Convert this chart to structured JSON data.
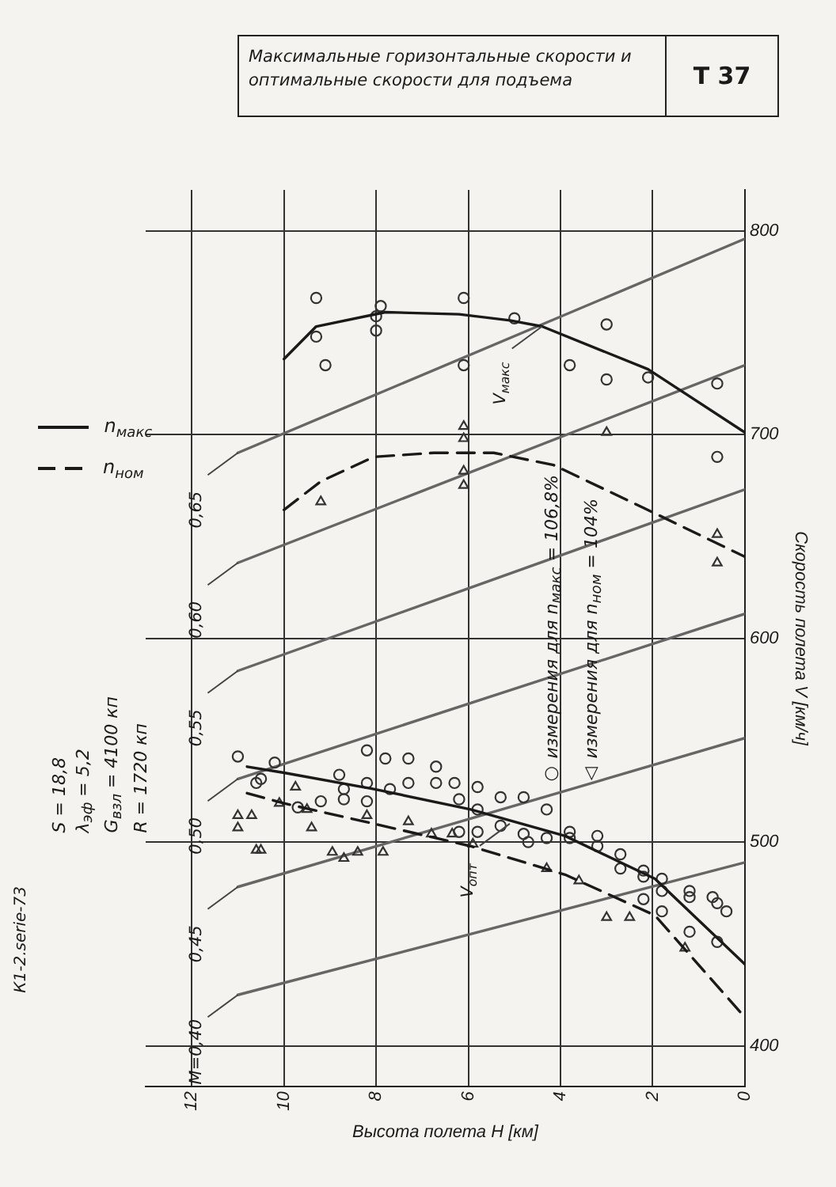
{
  "chart_data": {
    "type": "line",
    "title": "Максимальные горизонтальные скорости и оптимальные скорости для подъема",
    "subtitle": "Т 37",
    "xlabel": "Высота полета H [км]",
    "ylabel": "Скорость полета V [км/ч]",
    "xlim": [
      13,
      0
    ],
    "xticks": [
      12,
      10,
      8,
      6,
      4,
      2,
      0
    ],
    "ylim": [
      380,
      820
    ],
    "yticks": [
      400,
      500,
      600,
      700,
      800
    ],
    "grid": true,
    "legend": "left",
    "series": [
      {
        "type": "line",
        "name": "n$_{макс}$",
        "color": "#1a1a1a",
        "line_style": "solid",
        "marker": "none",
        "x": [
          10,
          9.3,
          7.8,
          6.2,
          5.1,
          4.4,
          2.1,
          0
        ],
        "values": [
          737,
          753,
          760,
          759,
          756,
          753,
          732,
          701
        ]
      },
      {
        "type": "line",
        "color": "#1a1a1a",
        "line_style": "solid",
        "marker": "none",
        "x": [
          10.8,
          10,
          8.05,
          5.95,
          3.9,
          1.95,
          0
        ],
        "values": [
          537,
          534,
          526,
          516,
          503,
          482,
          440
        ]
      },
      {
        "type": "line",
        "name": "n$_{ном}$",
        "color": "#1a1a1a",
        "line_style": "dashed",
        "marker": "none",
        "x": [
          10,
          9.2,
          8.05,
          6.75,
          5.45,
          4.15,
          2.2,
          0
        ],
        "values": [
          663,
          677,
          689,
          691,
          691,
          685,
          664,
          640
        ]
      },
      {
        "type": "line",
        "color": "#1a1a1a",
        "line_style": "dashed",
        "marker": "none",
        "x": [
          10.8,
          10,
          8.05,
          5.95,
          3.9,
          1.95,
          0
        ],
        "values": [
          524,
          519,
          509,
          498,
          484,
          464,
          414
        ]
      },
      {
        "type": "scatter",
        "color": "#333333",
        "marker": "circle",
        "x": [
          11.0,
          10.6,
          10.5,
          10.2,
          8.8,
          8.7,
          8.7,
          9.2,
          9.7,
          8.2,
          8.2,
          8.2,
          7.8,
          7.7,
          7.3,
          7.3,
          6.7,
          6.7,
          6.3,
          6.2,
          5.8,
          5.8,
          5.3,
          4.8,
          4.3,
          6.2,
          5.8,
          5.3,
          4.8,
          4.7,
          4.3,
          3.8,
          3.8,
          3.2,
          3.2,
          2.7,
          2.7,
          2.2,
          2.2,
          1.8,
          1.8,
          2.2,
          1.8,
          1.2,
          1.2,
          0.7,
          0.6,
          0.4,
          1.2,
          0.6,
          9.3,
          9.3,
          9.1,
          7.9,
          8.0,
          8.0,
          6.1,
          6.1,
          5.0,
          3.0,
          3.8,
          3.0,
          2.1,
          0.6,
          0.6
        ],
        "values": [
          542,
          529,
          531,
          539,
          533,
          526,
          521,
          520,
          517,
          545,
          529,
          520,
          541,
          526,
          541,
          529,
          537,
          529,
          529,
          521,
          527,
          516,
          522,
          522,
          516,
          505,
          505,
          508,
          504,
          500,
          502,
          505,
          502,
          503,
          498,
          494,
          487,
          486,
          483,
          482,
          476,
          472,
          466,
          476,
          473,
          473,
          470,
          466,
          456,
          451,
          767,
          748,
          734,
          763,
          758,
          751,
          767,
          734,
          757,
          754,
          734,
          727,
          728,
          725,
          689
        ]
      },
      {
        "type": "scatter",
        "color": "#333333",
        "marker": "triangle",
        "x": [
          6.1,
          6.1,
          6.1,
          6.1,
          3.0,
          9.2,
          0.6,
          0.6,
          11.0,
          10.7,
          11.0,
          10.6,
          10.5,
          10.1,
          9.75,
          9.4,
          9.5,
          8.95,
          8.7,
          8.4,
          7.85,
          8.2,
          7.3,
          6.8,
          6.35,
          5.9,
          4.3,
          3.6,
          2.5,
          3.0,
          1.3
        ],
        "values": [
          704,
          698,
          682,
          675,
          701,
          667,
          651,
          637,
          513,
          513,
          507,
          496,
          496,
          519,
          527,
          507,
          516,
          495,
          492,
          495,
          495,
          513,
          510,
          504,
          504,
          499,
          487,
          481,
          463,
          463,
          448
        ]
      },
      {
        "type": "line",
        "color": "#666666",
        "line_style": "solid",
        "marker": "none",
        "x": [
          11,
          0
        ],
        "values": [
          425,
          490
        ]
      },
      {
        "type": "line",
        "color": "#666666",
        "line_style": "solid",
        "marker": "none",
        "x": [
          11,
          0
        ],
        "values": [
          478,
          551
        ]
      },
      {
        "type": "line",
        "color": "#666666",
        "line_style": "solid",
        "marker": "none",
        "x": [
          11,
          0
        ],
        "values": [
          531,
          612
        ]
      },
      {
        "type": "line",
        "color": "#666666",
        "line_style": "solid",
        "marker": "none",
        "x": [
          11,
          0
        ],
        "values": [
          584,
          673
        ]
      },
      {
        "type": "line",
        "color": "#666666",
        "line_style": "solid",
        "marker": "none",
        "x": [
          11,
          0
        ],
        "values": [
          637,
          734
        ]
      },
      {
        "type": "line",
        "color": "#666666",
        "line_style": "solid",
        "marker": "none",
        "x": [
          11,
          0
        ],
        "values": [
          691,
          796
        ]
      }
    ],
    "annotations": [
      {
        "text": "M=0,40",
        "x": 11,
        "y": 425
      },
      {
        "text": "0,45",
        "x": 11,
        "y": 478
      },
      {
        "text": "0,50",
        "x": 11,
        "y": 531
      },
      {
        "text": "0,55",
        "x": 11,
        "y": 584
      },
      {
        "text": "0,60",
        "x": 11,
        "y": 637
      },
      {
        "text": "0,65",
        "x": 11,
        "y": 691
      },
      {
        "text": "V$_{макс}$",
        "x": 4.4,
        "y": 753
      },
      {
        "text": "V$_{опт}$",
        "x": 5.1,
        "y": 509
      },
      "○ измерения для n$_{макс}$ = 106,8%",
      "△ измерения для n$_{ном}$ = 104%",
      "S = 18,8",
      "λ$_{эф}$ = 5,2",
      "G$_{взл}$ = 4100 кп",
      "R = 1720 кп",
      "К1-2.serie-73"
    ]
  }
}
